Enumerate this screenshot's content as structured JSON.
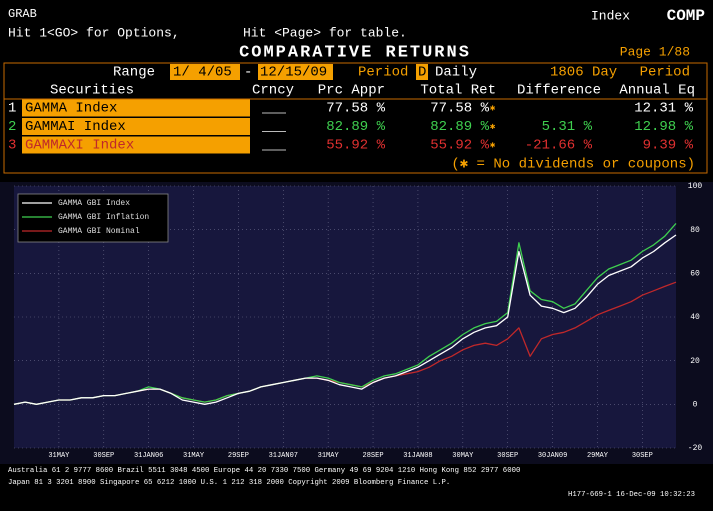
{
  "screen": {
    "function": "GRAB",
    "security_label": "Index",
    "security": "COMP",
    "hint_options": "Hit 1<GO> for Options,",
    "hint_page": "Hit <Page> for table.",
    "title": "COMPARATIVE RETURNS",
    "page": "Page  1/88",
    "range_label": "Range",
    "range_start": "1/ 4/05",
    "range_dash": "-",
    "range_end": "12/15/09",
    "period_label": "Period",
    "period_code": "D",
    "period_value": "Daily",
    "days": "1806 Day",
    "period_label_2": "Period",
    "columns": [
      "Securities",
      "Crncy",
      "Prc Appr",
      "Total Ret",
      "Difference",
      "Annual Eq"
    ],
    "rows": [
      {
        "index": "1",
        "security": "GAMMA Index",
        "prc_appr": "77.58 %",
        "total_ret": "77.58 %",
        "mark": "✱",
        "difference": null,
        "annual_eq": "12.31 %"
      },
      {
        "index": "2",
        "security": "GAMMAI Index",
        "prc_appr": "82.89 %",
        "total_ret": "82.89 %",
        "mark": "✱",
        "difference": "5.31 %",
        "annual_eq": "12.98 %"
      },
      {
        "index": "3",
        "security": "GAMMAXI Index",
        "prc_appr": "55.92 %",
        "total_ret": "55.92 %",
        "mark": "✱",
        "difference": "-21.66 %",
        "annual_eq": "9.39 %"
      }
    ],
    "note": "(✱ = No dividends or coupons)",
    "footer": [
      "Australia 61 2 9777 8600 Brazil 5511 3048 4500 Europe 44 20 7330 7500 Germany 49 69 9204 1210 Hong Kong 852 2977 6000",
      "Japan 81 3 3201 8900      Singapore 65 6212 1000      U.S. 1 212 318 2000      Copyright 2009 Bloomberg Finance L.P.",
      "H177-669-1 16-Dec-09 10:32:23"
    ]
  },
  "chart_data": {
    "type": "line",
    "categories": [
      null,
      null,
      null,
      null,
      "31MAY",
      null,
      null,
      null,
      "30SEP",
      null,
      null,
      null,
      "31JAN06",
      null,
      null,
      null,
      "31MAY",
      null,
      null,
      null,
      "29SEP",
      null,
      null,
      null,
      "31JAN07",
      null,
      null,
      null,
      "31MAY",
      null,
      null,
      null,
      "28SEP",
      null,
      null,
      null,
      "31JAN08",
      null,
      null,
      null,
      "30MAY",
      null,
      null,
      null,
      "30SEP",
      null,
      null,
      null,
      "30JAN09",
      null,
      null,
      null,
      "29MAY",
      null,
      null,
      null,
      "30SEP",
      null,
      null,
      null
    ],
    "series": [
      {
        "name": "GAMMA GBI Index",
        "color": "#ffffff",
        "values": [
          0,
          1,
          0,
          1,
          2,
          2,
          3,
          3,
          4,
          4,
          5,
          6,
          7,
          7,
          5,
          2,
          1,
          0,
          1,
          3,
          5,
          6,
          8,
          9,
          10,
          11,
          12,
          12,
          11,
          9,
          8,
          7,
          10,
          12,
          13,
          15,
          17,
          20,
          23,
          26,
          30,
          33,
          35,
          36,
          40,
          70,
          50,
          45,
          44,
          42,
          44,
          49,
          55,
          59,
          61,
          63,
          67,
          70,
          74,
          77.58
        ]
      },
      {
        "name": "GAMMA GBI Inflation",
        "color": "#3fcf4f",
        "values": [
          0,
          1,
          0,
          1,
          2,
          2,
          3,
          3,
          4,
          4,
          5,
          6,
          8,
          7,
          5,
          3,
          2,
          1,
          2,
          4,
          5,
          6,
          8,
          9,
          10,
          11,
          12,
          13,
          12,
          10,
          9,
          8,
          11,
          13,
          14,
          16,
          18,
          22,
          25,
          28,
          32,
          35,
          37,
          38,
          42,
          74,
          52,
          48,
          47,
          44,
          46,
          52,
          58,
          62,
          64,
          66,
          70,
          73,
          77,
          82.89
        ]
      },
      {
        "name": "GAMMA GBI Nominal",
        "color": "#c0282a",
        "values": [
          0,
          1,
          0,
          1,
          2,
          2,
          3,
          3,
          4,
          4,
          5,
          6,
          7,
          7,
          5,
          3,
          2,
          1,
          2,
          4,
          5,
          6,
          8,
          9,
          10,
          11,
          12,
          12,
          11,
          10,
          9,
          8,
          10,
          12,
          13,
          14,
          15,
          17,
          20,
          22,
          25,
          27,
          28,
          27,
          30,
          35,
          22,
          30,
          32,
          33,
          35,
          38,
          41,
          43,
          45,
          47,
          50,
          52,
          54,
          55.92
        ]
      }
    ],
    "ylim": [
      -20,
      100
    ],
    "yticks": [
      -20,
      0,
      20,
      40,
      60,
      80,
      100
    ],
    "grid": true,
    "legend": "top-left"
  }
}
